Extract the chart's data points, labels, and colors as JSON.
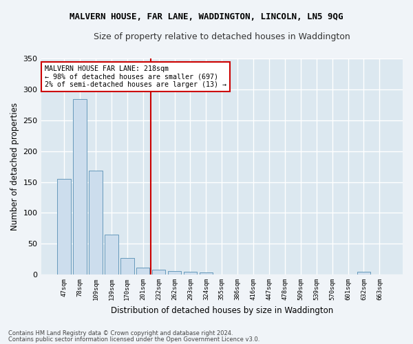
{
  "title": "MALVERN HOUSE, FAR LANE, WADDINGTON, LINCOLN, LN5 9QG",
  "subtitle": "Size of property relative to detached houses in Waddington",
  "xlabel": "Distribution of detached houses by size in Waddington",
  "ylabel": "Number of detached properties",
  "bar_labels": [
    "47sqm",
    "78sqm",
    "109sqm",
    "139sqm",
    "170sqm",
    "201sqm",
    "232sqm",
    "262sqm",
    "293sqm",
    "324sqm",
    "355sqm",
    "386sqm",
    "416sqm",
    "447sqm",
    "478sqm",
    "509sqm",
    "539sqm",
    "570sqm",
    "601sqm",
    "632sqm",
    "663sqm"
  ],
  "bar_values": [
    155,
    285,
    168,
    65,
    27,
    11,
    8,
    6,
    4,
    3,
    0,
    0,
    0,
    0,
    0,
    0,
    0,
    0,
    0,
    4,
    0
  ],
  "bar_color": "#ccdded",
  "bar_edge_color": "#6699bb",
  "vline_x": 5.48,
  "vline_color": "#cc0000",
  "annotation_text": "MALVERN HOUSE FAR LANE: 218sqm\n← 98% of detached houses are smaller (697)\n2% of semi-detached houses are larger (13) →",
  "annotation_box_color": "#ffffff",
  "annotation_box_edge": "#cc0000",
  "ylim": [
    0,
    350
  ],
  "yticks": [
    0,
    50,
    100,
    150,
    200,
    250,
    300,
    350
  ],
  "plot_bg_color": "#dce8f0",
  "fig_bg_color": "#f0f4f8",
  "grid_color": "#ffffff",
  "footer1": "Contains HM Land Registry data © Crown copyright and database right 2024.",
  "footer2": "Contains public sector information licensed under the Open Government Licence v3.0."
}
